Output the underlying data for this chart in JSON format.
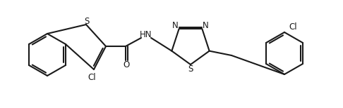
{
  "bg_color": "#ffffff",
  "line_color": "#1a1a1a",
  "line_width": 1.5,
  "font_size": 8.5,
  "figsize": [
    4.86,
    1.54
  ],
  "dpi": 100,
  "atoms": {
    "S_thio": "S",
    "S_tdz": "S",
    "N1_tdz": "N",
    "N3_tdz": "N",
    "HN": "HN",
    "O": "O",
    "Cl1": "Cl",
    "Cl2": "Cl"
  }
}
